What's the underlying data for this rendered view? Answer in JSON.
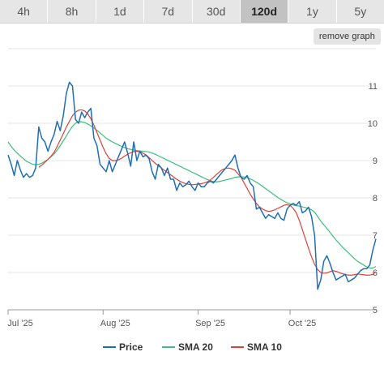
{
  "range_tabs": [
    {
      "label": "4h",
      "active": false
    },
    {
      "label": "8h",
      "active": false
    },
    {
      "label": "1d",
      "active": false
    },
    {
      "label": "7d",
      "active": false
    },
    {
      "label": "30d",
      "active": false
    },
    {
      "label": "120d",
      "active": true
    },
    {
      "label": "1y",
      "active": false
    },
    {
      "label": "5y",
      "active": false
    }
  ],
  "remove_graph_label": "remove graph",
  "colors": {
    "price": "#1f6fb4",
    "sma20": "#3cc07a",
    "sma10": "#e0403a",
    "grid": "#e6e6e6",
    "axis": "#999999"
  },
  "chart_data": {
    "type": "line",
    "x_labels": [
      "Jul '25",
      "Aug '25",
      "Sep '25",
      "Oct '25"
    ],
    "x_label_positions": [
      0,
      31,
      62,
      92
    ],
    "xlim": [
      0,
      120
    ],
    "ylim": [
      5,
      12
    ],
    "y_ticks": [
      5,
      6,
      7,
      8,
      9,
      10,
      11
    ],
    "grid": true,
    "legend_position": "bottom",
    "series": [
      {
        "name": "Price",
        "color": "#1f6fb4",
        "x": [
          0,
          1,
          2,
          3,
          4,
          5,
          6,
          7,
          8,
          9,
          10,
          11,
          12,
          13,
          14,
          15,
          16,
          17,
          18,
          19,
          20,
          21,
          22,
          23,
          24,
          25,
          26,
          27,
          28,
          29,
          30,
          31,
          32,
          33,
          34,
          35,
          36,
          37,
          38,
          39,
          40,
          41,
          42,
          43,
          44,
          45,
          46,
          47,
          48,
          49,
          50,
          51,
          52,
          53,
          54,
          55,
          56,
          57,
          58,
          59,
          60,
          61,
          62,
          63,
          64,
          65,
          66,
          67,
          68,
          69,
          70,
          71,
          72,
          73,
          74,
          75,
          76,
          77,
          78,
          79,
          80,
          81,
          82,
          83,
          84,
          85,
          86,
          87,
          88,
          89,
          90,
          91,
          92,
          93,
          94,
          95,
          96,
          97,
          98,
          99,
          100,
          101,
          102,
          103,
          104,
          105,
          106,
          107,
          108,
          109,
          110,
          111,
          112,
          113,
          114,
          115,
          116,
          117,
          118,
          119,
          120
        ],
        "values": [
          9.15,
          8.9,
          8.6,
          9.0,
          8.75,
          8.55,
          8.65,
          8.55,
          8.6,
          8.8,
          9.9,
          9.6,
          9.5,
          9.25,
          9.5,
          9.7,
          10.05,
          9.8,
          10.2,
          10.8,
          11.1,
          11.0,
          10.1,
          10.0,
          10.3,
          10.15,
          10.3,
          10.4,
          9.6,
          9.4,
          8.9,
          8.8,
          8.7,
          9.0,
          8.7,
          8.9,
          9.1,
          9.3,
          9.5,
          9.2,
          8.85,
          9.5,
          9.0,
          9.25,
          9.1,
          9.15,
          9.05,
          8.7,
          8.5,
          8.9,
          8.8,
          8.6,
          8.8,
          8.5,
          8.5,
          8.2,
          8.4,
          8.3,
          8.35,
          8.45,
          8.3,
          8.2,
          8.4,
          8.3,
          8.3,
          8.4,
          8.45,
          8.4,
          8.5,
          8.6,
          8.7,
          8.8,
          8.9,
          9.0,
          9.15,
          8.8,
          8.55,
          8.5,
          8.6,
          8.4,
          8.3,
          7.7,
          7.75,
          7.6,
          7.45,
          7.55,
          7.5,
          7.45,
          7.6,
          7.45,
          7.4,
          7.7,
          7.8,
          7.85,
          7.8,
          7.9,
          7.6,
          7.65,
          7.75,
          7.5,
          7.0,
          5.55,
          5.8,
          6.3,
          6.45,
          6.25,
          6.0,
          5.8,
          5.85,
          5.9,
          5.95,
          5.75,
          5.8,
          5.85,
          5.95,
          6.05,
          6.1,
          6.1,
          6.2,
          6.6,
          6.9
        ]
      },
      {
        "name": "SMA 20",
        "color": "#3cc07a",
        "x": [
          0,
          1,
          2,
          3,
          4,
          5,
          6,
          7,
          8,
          9,
          10,
          11,
          12,
          13,
          14,
          15,
          16,
          17,
          18,
          19,
          20,
          21,
          22,
          23,
          24,
          25,
          26,
          27,
          28,
          29,
          30,
          31,
          32,
          33,
          34,
          35,
          36,
          37,
          38,
          39,
          40,
          41,
          42,
          43,
          44,
          45,
          46,
          47,
          48,
          49,
          50,
          51,
          52,
          53,
          54,
          55,
          56,
          57,
          58,
          59,
          60,
          61,
          62,
          63,
          64,
          65,
          66,
          67,
          68,
          69,
          70,
          71,
          72,
          73,
          74,
          75,
          76,
          77,
          78,
          79,
          80,
          81,
          82,
          83,
          84,
          85,
          86,
          87,
          88,
          89,
          90,
          91,
          92,
          93,
          94,
          95,
          96,
          97,
          98,
          99,
          100,
          101,
          102,
          103,
          104,
          105,
          106,
          107,
          108,
          109,
          110,
          111,
          112,
          113,
          114,
          115,
          116,
          117,
          118,
          119,
          120
        ],
        "values": [
          9.5,
          9.38,
          9.28,
          9.2,
          9.12,
          9.05,
          8.98,
          8.94,
          8.9,
          8.89,
          8.9,
          8.93,
          8.98,
          9.03,
          9.1,
          9.18,
          9.28,
          9.4,
          9.53,
          9.66,
          9.8,
          9.92,
          10.0,
          10.04,
          10.04,
          10.02,
          9.98,
          9.93,
          9.87,
          9.81,
          9.74,
          9.67,
          9.6,
          9.55,
          9.5,
          9.46,
          9.42,
          9.38,
          9.35,
          9.32,
          9.3,
          9.28,
          9.27,
          9.26,
          9.25,
          9.24,
          9.23,
          9.2,
          9.17,
          9.13,
          9.09,
          9.05,
          9.01,
          8.97,
          8.93,
          8.89,
          8.85,
          8.81,
          8.77,
          8.73,
          8.69,
          8.65,
          8.61,
          8.57,
          8.53,
          8.49,
          8.46,
          8.44,
          8.43,
          8.44,
          8.46,
          8.48,
          8.5,
          8.52,
          8.55,
          8.56,
          8.57,
          8.56,
          8.54,
          8.51,
          8.47,
          8.42,
          8.37,
          8.31,
          8.25,
          8.19,
          8.13,
          8.07,
          8.01,
          7.96,
          7.91,
          7.87,
          7.84,
          7.81,
          7.79,
          7.78,
          7.76,
          7.74,
          7.72,
          7.68,
          7.62,
          7.5,
          7.38,
          7.28,
          7.18,
          7.08,
          6.97,
          6.87,
          6.78,
          6.69,
          6.61,
          6.53,
          6.45,
          6.37,
          6.3,
          6.25,
          6.2,
          6.15,
          6.12,
          6.12,
          6.16
        ]
      },
      {
        "name": "SMA 10",
        "color": "#e0403a",
        "x": [
          10,
          11,
          12,
          13,
          14,
          15,
          16,
          17,
          18,
          19,
          20,
          21,
          22,
          23,
          24,
          25,
          26,
          27,
          28,
          29,
          30,
          31,
          32,
          33,
          34,
          35,
          36,
          37,
          38,
          39,
          40,
          41,
          42,
          43,
          44,
          45,
          46,
          47,
          48,
          49,
          50,
          51,
          52,
          53,
          54,
          55,
          56,
          57,
          58,
          59,
          60,
          61,
          62,
          63,
          64,
          65,
          66,
          67,
          68,
          69,
          70,
          71,
          72,
          73,
          74,
          75,
          76,
          77,
          78,
          79,
          80,
          81,
          82,
          83,
          84,
          85,
          86,
          87,
          88,
          89,
          90,
          91,
          92,
          93,
          94,
          95,
          96,
          97,
          98,
          99,
          100,
          101,
          102,
          103,
          104,
          105,
          106,
          107,
          108,
          109,
          110,
          111,
          112,
          113,
          114,
          115,
          116,
          117,
          118,
          119,
          120
        ],
        "values": [
          8.82,
          8.88,
          8.95,
          9.03,
          9.12,
          9.22,
          9.38,
          9.55,
          9.72,
          9.9,
          10.05,
          10.2,
          10.3,
          10.35,
          10.36,
          10.33,
          10.25,
          10.12,
          9.95,
          9.75,
          9.55,
          9.35,
          9.18,
          9.06,
          9.0,
          9.0,
          9.02,
          9.06,
          9.12,
          9.17,
          9.21,
          9.24,
          9.25,
          9.24,
          9.2,
          9.15,
          9.08,
          9.0,
          8.93,
          8.86,
          8.8,
          8.74,
          8.68,
          8.62,
          8.56,
          8.5,
          8.45,
          8.41,
          8.38,
          8.36,
          8.35,
          8.36,
          8.37,
          8.38,
          8.4,
          8.43,
          8.48,
          8.55,
          8.63,
          8.7,
          8.76,
          8.79,
          8.8,
          8.78,
          8.74,
          8.65,
          8.55,
          8.4,
          8.25,
          8.1,
          7.97,
          7.85,
          7.76,
          7.7,
          7.66,
          7.64,
          7.65,
          7.68,
          7.72,
          7.76,
          7.8,
          7.82,
          7.8,
          7.72,
          7.6,
          7.4,
          7.15,
          6.9,
          6.65,
          6.42,
          6.22,
          6.08,
          6.0,
          5.98,
          5.99,
          6.02,
          6.05,
          6.03,
          6.0,
          5.97,
          5.95,
          5.93,
          5.93,
          5.94,
          5.96,
          5.95,
          5.94,
          5.93,
          5.93,
          5.95,
          6.02
        ]
      }
    ]
  }
}
